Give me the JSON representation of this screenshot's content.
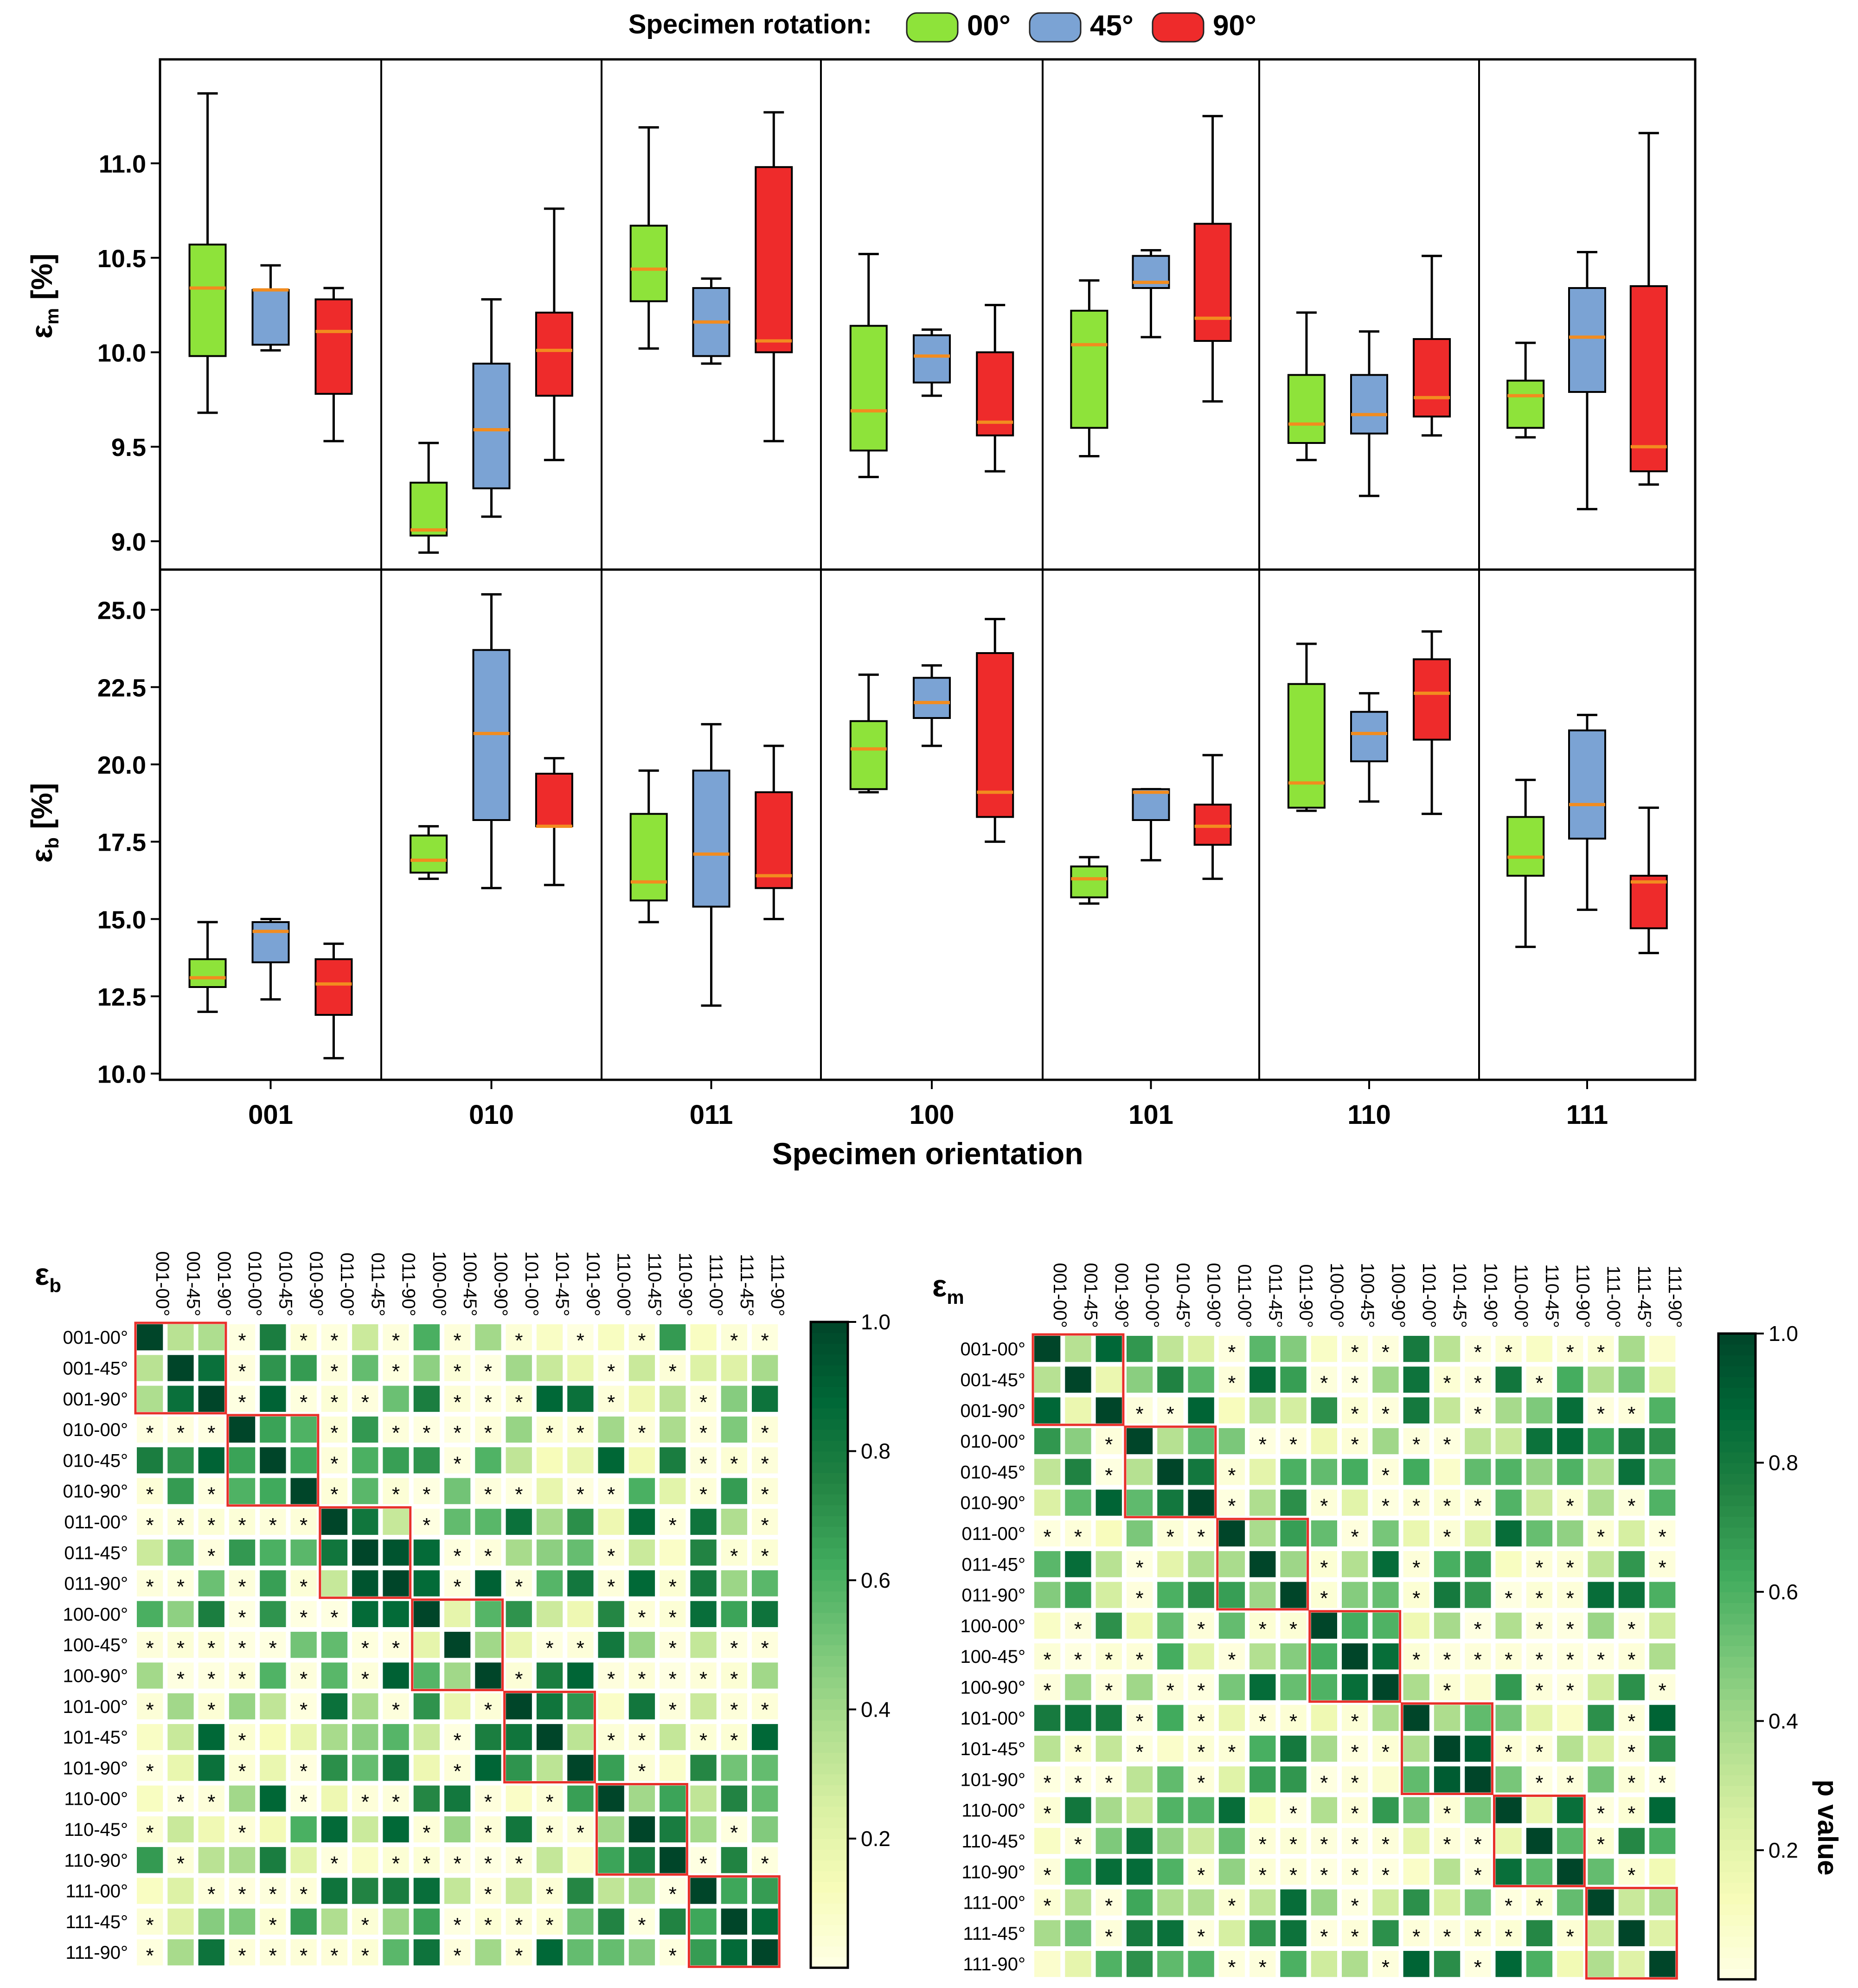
{
  "legend": {
    "title": "Specimen rotation:",
    "items": [
      {
        "label": "00°",
        "color": "#8ee33a"
      },
      {
        "label": "45°",
        "color": "#7ba3d4"
      },
      {
        "label": "90°",
        "color": "#ee2b2b"
      }
    ]
  },
  "colors": {
    "median": "#f28c1f",
    "frame_red": "#e8302a",
    "whisker": "#000000"
  },
  "chart_data": [
    {
      "type": "box",
      "panel": "top",
      "ylabel_main": "ε",
      "ylabel_sub": "m",
      "ylabel_rest": " [%]",
      "ylim": [
        8.85,
        11.55
      ],
      "yticks": [
        9.0,
        9.5,
        10.0,
        10.5,
        11.0
      ],
      "ytick_labels": [
        "9.0",
        "9.5",
        "10.0",
        "10.5",
        "11.0"
      ],
      "groups": [
        "001",
        "010",
        "011",
        "100",
        "101",
        "110",
        "111"
      ],
      "series_order": [
        "00°",
        "45°",
        "90°"
      ],
      "boxes": [
        [
          [
            9.68,
            9.98,
            10.34,
            10.57,
            11.37
          ],
          [
            10.01,
            10.04,
            10.33,
            10.33,
            10.46
          ],
          [
            9.53,
            9.78,
            10.11,
            10.28,
            10.34
          ]
        ],
        [
          [
            8.94,
            9.03,
            9.06,
            9.31,
            9.52
          ],
          [
            9.13,
            9.28,
            9.59,
            9.94,
            10.28
          ],
          [
            9.43,
            9.77,
            10.01,
            10.21,
            10.76
          ]
        ],
        [
          [
            10.02,
            10.27,
            10.44,
            10.67,
            11.19
          ],
          [
            9.94,
            9.98,
            10.16,
            10.34,
            10.39
          ],
          [
            9.53,
            10.0,
            10.06,
            10.98,
            11.27
          ]
        ],
        [
          [
            9.34,
            9.48,
            9.69,
            10.14,
            10.52
          ],
          [
            9.77,
            9.84,
            9.98,
            10.09,
            10.12
          ],
          [
            9.37,
            9.56,
            9.63,
            10.0,
            10.25
          ]
        ],
        [
          [
            9.45,
            9.6,
            10.04,
            10.22,
            10.38
          ],
          [
            10.08,
            10.34,
            10.37,
            10.51,
            10.54
          ],
          [
            9.74,
            10.06,
            10.18,
            10.68,
            11.25
          ]
        ],
        [
          [
            9.43,
            9.52,
            9.62,
            9.88,
            10.21
          ],
          [
            9.24,
            9.57,
            9.67,
            9.88,
            10.11
          ],
          [
            9.56,
            9.66,
            9.76,
            10.07,
            10.51
          ]
        ],
        [
          [
            9.55,
            9.6,
            9.77,
            9.85,
            10.05
          ],
          [
            9.17,
            9.79,
            10.08,
            10.34,
            10.53
          ],
          [
            9.3,
            9.37,
            9.5,
            10.35,
            11.16
          ]
        ]
      ]
    },
    {
      "type": "box",
      "panel": "bottom",
      "ylabel_main": "ε",
      "ylabel_sub": "b",
      "ylabel_rest": " [%]",
      "ylim": [
        9.8,
        26.3
      ],
      "yticks": [
        10.0,
        12.5,
        15.0,
        17.5,
        20.0,
        22.5,
        25.0
      ],
      "ytick_labels": [
        "10.0",
        "12.5",
        "15.0",
        "17.5",
        "20.0",
        "22.5",
        "25.0"
      ],
      "xlabel": "Specimen orientation",
      "groups": [
        "001",
        "010",
        "011",
        "100",
        "101",
        "110",
        "111"
      ],
      "series_order": [
        "00°",
        "45°",
        "90°"
      ],
      "boxes": [
        [
          [
            12.0,
            12.8,
            13.1,
            13.7,
            14.9
          ],
          [
            12.4,
            13.6,
            14.6,
            14.9,
            15.0
          ],
          [
            10.5,
            11.9,
            12.9,
            13.7,
            14.2
          ]
        ],
        [
          [
            16.3,
            16.5,
            16.9,
            17.7,
            18.0
          ],
          [
            16.0,
            18.2,
            21.0,
            23.7,
            25.5
          ],
          [
            16.1,
            18.0,
            18.0,
            19.7,
            20.2
          ]
        ],
        [
          [
            14.9,
            15.6,
            16.2,
            18.4,
            19.8
          ],
          [
            12.2,
            15.4,
            17.1,
            19.8,
            21.3
          ],
          [
            15.0,
            16.0,
            16.4,
            19.1,
            20.6
          ]
        ],
        [
          [
            19.1,
            19.2,
            20.5,
            21.4,
            22.9
          ],
          [
            20.6,
            21.5,
            22.0,
            22.8,
            23.2
          ],
          [
            17.5,
            18.3,
            19.1,
            23.6,
            24.7
          ]
        ],
        [
          [
            15.5,
            15.7,
            16.3,
            16.7,
            17.0
          ],
          [
            16.9,
            18.2,
            19.1,
            19.2,
            19.2
          ],
          [
            16.3,
            17.4,
            18.0,
            18.7,
            20.3
          ]
        ],
        [
          [
            18.5,
            18.6,
            19.4,
            22.6,
            23.9
          ],
          [
            18.8,
            20.1,
            21.0,
            21.7,
            22.3
          ],
          [
            18.4,
            20.8,
            22.3,
            23.4,
            24.3
          ]
        ],
        [
          [
            14.1,
            16.4,
            17.0,
            18.3,
            19.5
          ],
          [
            15.3,
            17.6,
            18.7,
            21.1,
            21.6
          ],
          [
            13.9,
            14.7,
            16.2,
            16.4,
            18.6
          ]
        ]
      ]
    },
    {
      "type": "heatmap",
      "panel": "left",
      "label_main": "ε",
      "label_sub": "b",
      "labels": [
        "001-00°",
        "001-45°",
        "001-90°",
        "010-00°",
        "010-45°",
        "010-90°",
        "011-00°",
        "011-45°",
        "011-90°",
        "100-00°",
        "100-45°",
        "100-90°",
        "101-00°",
        "101-45°",
        "101-90°",
        "110-00°",
        "110-45°",
        "110-90°",
        "111-00°",
        "111-45°",
        "111-90°"
      ],
      "colorbar_ticks": [
        0.2,
        0.4,
        0.6,
        0.8,
        1.0
      ],
      "colorbar_tick_labels": [
        "0.2",
        "0.4",
        "0.6",
        "0.8",
        "1.0"
      ],
      "colorbar_range": [
        0.0,
        1.0
      ],
      "scale": "YlGn",
      "seed": 11,
      "star_marker": "*",
      "diagonal_blocks": 7
    },
    {
      "type": "heatmap",
      "panel": "right",
      "label_main": "ε",
      "label_sub": "m",
      "labels": [
        "001-00°",
        "001-45°",
        "001-90°",
        "010-00°",
        "010-45°",
        "010-90°",
        "011-00°",
        "011-45°",
        "011-90°",
        "100-00°",
        "100-45°",
        "100-90°",
        "101-00°",
        "101-45°",
        "101-90°",
        "110-00°",
        "110-45°",
        "110-90°",
        "111-00°",
        "111-45°",
        "111-90°"
      ],
      "colorbar_ticks": [
        0.2,
        0.4,
        0.6,
        0.8,
        1.0
      ],
      "colorbar_tick_labels": [
        "0.2",
        "0.4",
        "0.6",
        "0.8",
        "1.0"
      ],
      "colorbar_range": [
        0.0,
        1.0
      ],
      "colorbar_label": "p value",
      "scale": "YlGn",
      "seed": 29,
      "star_marker": "*",
      "diagonal_blocks": 7
    }
  ]
}
